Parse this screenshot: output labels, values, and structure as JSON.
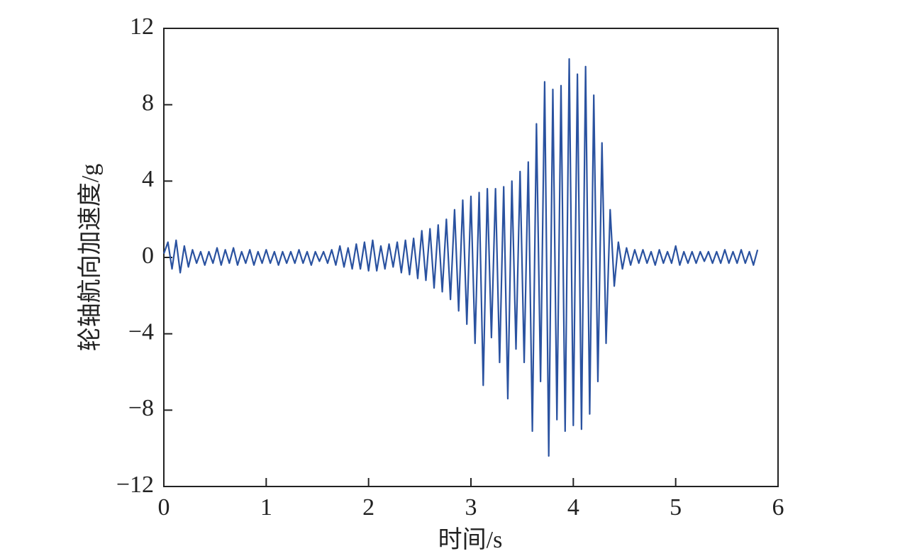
{
  "chart_data": {
    "type": "line",
    "xlabel": "时间/s",
    "ylabel": "轮轴航向加速度/g",
    "x": [
      0,
      0.04,
      0.08,
      0.12,
      0.16,
      0.2,
      0.24,
      0.28,
      0.32,
      0.36,
      0.4,
      0.44,
      0.48,
      0.52,
      0.56,
      0.6,
      0.64,
      0.68,
      0.72,
      0.76,
      0.8,
      0.84,
      0.88,
      0.92,
      0.96,
      1,
      1.04,
      1.08,
      1.12,
      1.16,
      1.2,
      1.24,
      1.28,
      1.32,
      1.36,
      1.4,
      1.44,
      1.48,
      1.52,
      1.56,
      1.6,
      1.64,
      1.68,
      1.72,
      1.76,
      1.8,
      1.84,
      1.88,
      1.92,
      1.96,
      2,
      2.04,
      2.08,
      2.12,
      2.16,
      2.2,
      2.24,
      2.28,
      2.32,
      2.36,
      2.4,
      2.44,
      2.48,
      2.52,
      2.56,
      2.6,
      2.64,
      2.68,
      2.72,
      2.76,
      2.8,
      2.84,
      2.88,
      2.92,
      2.96,
      3,
      3.04,
      3.08,
      3.12,
      3.16,
      3.2,
      3.24,
      3.28,
      3.32,
      3.36,
      3.4,
      3.44,
      3.48,
      3.52,
      3.56,
      3.6,
      3.64,
      3.68,
      3.72,
      3.76,
      3.8,
      3.84,
      3.88,
      3.92,
      3.96,
      4,
      4.04,
      4.08,
      4.12,
      4.16,
      4.2,
      4.24,
      4.28,
      4.32,
      4.36,
      4.4,
      4.44,
      4.48,
      4.52,
      4.56,
      4.6,
      4.64,
      4.68,
      4.72,
      4.76,
      4.8,
      4.84,
      4.88,
      4.92,
      4.96,
      5,
      5.04,
      5.08,
      5.12,
      5.16,
      5.2,
      5.24,
      5.28,
      5.32,
      5.36,
      5.4,
      5.44,
      5.48,
      5.52,
      5.56,
      5.6,
      5.64,
      5.68,
      5.72,
      5.76,
      5.8
    ],
    "values": [
      0.2,
      0.8,
      -0.6,
      0.9,
      -0.8,
      0.6,
      -0.5,
      0.4,
      -0.3,
      0.3,
      -0.4,
      0.3,
      -0.3,
      0.5,
      -0.4,
      0.4,
      -0.3,
      0.5,
      -0.4,
      0.3,
      -0.3,
      0.4,
      -0.4,
      0.3,
      -0.3,
      0.4,
      -0.3,
      0.3,
      -0.4,
      0.3,
      -0.3,
      0.3,
      -0.3,
      0.4,
      -0.3,
      0.3,
      -0.4,
      0.3,
      -0.2,
      0.3,
      -0.3,
      0.4,
      -0.4,
      0.6,
      -0.5,
      0.5,
      -0.6,
      0.7,
      -0.6,
      0.8,
      -0.7,
      0.9,
      -0.7,
      0.6,
      -0.6,
      0.7,
      -0.5,
      0.8,
      -0.8,
      0.9,
      -0.9,
      1.0,
      -1.1,
      1.4,
      -1.2,
      1.5,
      -1.6,
      1.7,
      -1.8,
      2.0,
      -2.2,
      2.5,
      -2.8,
      3.0,
      -3.5,
      3.2,
      -4.5,
      3.4,
      -6.7,
      3.6,
      -4.2,
      3.6,
      -5.5,
      3.7,
      -7.4,
      4.0,
      -4.8,
      4.5,
      -5.5,
      5.0,
      -9.1,
      7.0,
      -6.5,
      9.2,
      -10.4,
      8.8,
      -8.5,
      9.0,
      -9.1,
      10.4,
      -8.8,
      9.6,
      -9.0,
      10.0,
      -8.2,
      8.5,
      -6.5,
      6.0,
      -4.5,
      2.5,
      -1.5,
      0.8,
      -0.6,
      0.5,
      -0.4,
      0.4,
      -0.3,
      0.4,
      -0.3,
      0.3,
      -0.4,
      0.4,
      -0.3,
      0.3,
      -0.3,
      0.6,
      -0.4,
      0.3,
      -0.3,
      0.3,
      -0.3,
      0.3,
      -0.2,
      0.3,
      -0.3,
      0.3,
      -0.3,
      0.4,
      -0.3,
      0.3,
      -0.3,
      0.4,
      -0.3,
      0.3,
      -0.4,
      0.4
    ],
    "color": "#2a52a0",
    "xlim": [
      0,
      6
    ],
    "xticks": [
      0,
      1,
      2,
      3,
      4,
      5,
      6
    ],
    "ylim": [
      -12,
      12
    ],
    "yticks": [
      {
        "value": -12,
        "label": "−12"
      },
      {
        "value": -8,
        "label": "−8"
      },
      {
        "value": -4,
        "label": "−4"
      },
      0,
      4,
      8,
      12
    ]
  }
}
